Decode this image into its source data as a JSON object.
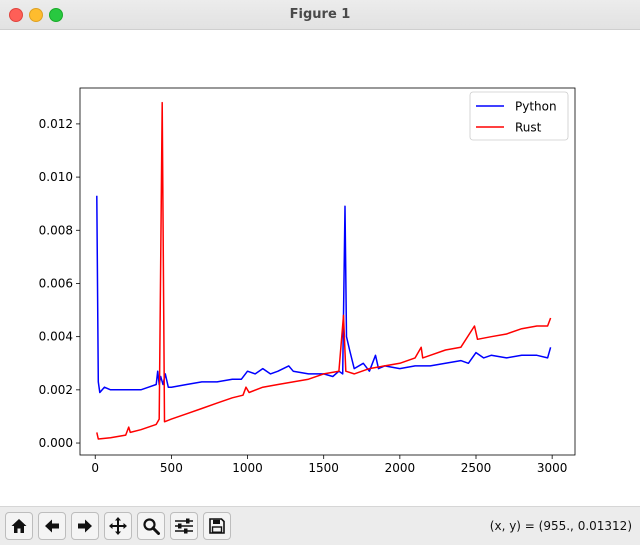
{
  "window": {
    "title": "Figure 1",
    "controls": [
      "close",
      "minimize",
      "maximize"
    ]
  },
  "toolbar": {
    "buttons": [
      {
        "name": "home",
        "icon": "home-icon"
      },
      {
        "name": "back",
        "icon": "arrow-left-icon"
      },
      {
        "name": "forward",
        "icon": "arrow-right-icon"
      },
      {
        "name": "pan",
        "icon": "move-icon"
      },
      {
        "name": "zoom",
        "icon": "magnifier-icon"
      },
      {
        "name": "configure",
        "icon": "sliders-icon"
      },
      {
        "name": "save",
        "icon": "floppy-disk-icon"
      }
    ],
    "coords_text": "(x, y) = (955., 0.01312)"
  },
  "chart_data": {
    "type": "line",
    "xlim": [
      -100,
      3150
    ],
    "ylim": [
      -0.00045,
      0.01335
    ],
    "xticks": [
      0,
      500,
      1000,
      1500,
      2000,
      2500,
      3000
    ],
    "yticks": [
      0.0,
      0.002,
      0.004,
      0.006,
      0.008,
      0.01,
      0.012
    ],
    "xtick_labels": [
      "0",
      "500",
      "1000",
      "1500",
      "2000",
      "2500",
      "3000"
    ],
    "ytick_labels": [
      "0.000",
      "0.002",
      "0.004",
      "0.006",
      "0.008",
      "0.010",
      "0.012"
    ],
    "grid": false,
    "legend": "top-right",
    "series": [
      {
        "name": "Python",
        "color": "#0000ff",
        "points": [
          [
            10,
            0.0093
          ],
          [
            20,
            0.0023
          ],
          [
            30,
            0.0019
          ],
          [
            60,
            0.0021
          ],
          [
            100,
            0.002
          ],
          [
            150,
            0.002
          ],
          [
            200,
            0.002
          ],
          [
            250,
            0.002
          ],
          [
            300,
            0.002
          ],
          [
            350,
            0.0021
          ],
          [
            400,
            0.0022
          ],
          [
            410,
            0.0027
          ],
          [
            420,
            0.0022
          ],
          [
            430,
            0.0025
          ],
          [
            445,
            0.0022
          ],
          [
            460,
            0.0026
          ],
          [
            480,
            0.0021
          ],
          [
            500,
            0.0021
          ],
          [
            600,
            0.0022
          ],
          [
            700,
            0.0023
          ],
          [
            800,
            0.0023
          ],
          [
            900,
            0.0024
          ],
          [
            960,
            0.0024
          ],
          [
            1000,
            0.0027
          ],
          [
            1050,
            0.0026
          ],
          [
            1100,
            0.0028
          ],
          [
            1150,
            0.0026
          ],
          [
            1200,
            0.0027
          ],
          [
            1270,
            0.0029
          ],
          [
            1300,
            0.0027
          ],
          [
            1400,
            0.0026
          ],
          [
            1500,
            0.0026
          ],
          [
            1560,
            0.0025
          ],
          [
            1600,
            0.0027
          ],
          [
            1625,
            0.0026
          ],
          [
            1640,
            0.0089
          ],
          [
            1650,
            0.004
          ],
          [
            1670,
            0.0035
          ],
          [
            1700,
            0.0028
          ],
          [
            1760,
            0.003
          ],
          [
            1800,
            0.0027
          ],
          [
            1840,
            0.0033
          ],
          [
            1860,
            0.0028
          ],
          [
            1900,
            0.0029
          ],
          [
            2000,
            0.0028
          ],
          [
            2100,
            0.0029
          ],
          [
            2200,
            0.0029
          ],
          [
            2300,
            0.003
          ],
          [
            2400,
            0.0031
          ],
          [
            2450,
            0.003
          ],
          [
            2500,
            0.0034
          ],
          [
            2550,
            0.0032
          ],
          [
            2600,
            0.0033
          ],
          [
            2700,
            0.0032
          ],
          [
            2800,
            0.0033
          ],
          [
            2900,
            0.0033
          ],
          [
            2970,
            0.0032
          ],
          [
            2990,
            0.0036
          ]
        ]
      },
      {
        "name": "Rust",
        "color": "#ff0000",
        "points": [
          [
            10,
            0.0004
          ],
          [
            20,
            0.00015
          ],
          [
            100,
            0.0002
          ],
          [
            200,
            0.0003
          ],
          [
            220,
            0.0006
          ],
          [
            230,
            0.0004
          ],
          [
            300,
            0.0005
          ],
          [
            400,
            0.0007
          ],
          [
            420,
            0.0009
          ],
          [
            440,
            0.0128
          ],
          [
            455,
            0.0008
          ],
          [
            500,
            0.0009
          ],
          [
            600,
            0.0011
          ],
          [
            700,
            0.0013
          ],
          [
            800,
            0.0015
          ],
          [
            900,
            0.0017
          ],
          [
            970,
            0.0018
          ],
          [
            990,
            0.0021
          ],
          [
            1010,
            0.0019
          ],
          [
            1100,
            0.0021
          ],
          [
            1200,
            0.0022
          ],
          [
            1300,
            0.0023
          ],
          [
            1400,
            0.0024
          ],
          [
            1500,
            0.0026
          ],
          [
            1600,
            0.0027
          ],
          [
            1630,
            0.0048
          ],
          [
            1645,
            0.0027
          ],
          [
            1700,
            0.0026
          ],
          [
            1800,
            0.0028
          ],
          [
            1900,
            0.0029
          ],
          [
            2000,
            0.003
          ],
          [
            2100,
            0.0032
          ],
          [
            2140,
            0.0036
          ],
          [
            2150,
            0.0032
          ],
          [
            2200,
            0.0033
          ],
          [
            2300,
            0.0035
          ],
          [
            2400,
            0.0036
          ],
          [
            2490,
            0.0044
          ],
          [
            2510,
            0.0039
          ],
          [
            2600,
            0.004
          ],
          [
            2700,
            0.0041
          ],
          [
            2800,
            0.0043
          ],
          [
            2900,
            0.0044
          ],
          [
            2970,
            0.0044
          ],
          [
            2990,
            0.0047
          ]
        ]
      }
    ]
  }
}
